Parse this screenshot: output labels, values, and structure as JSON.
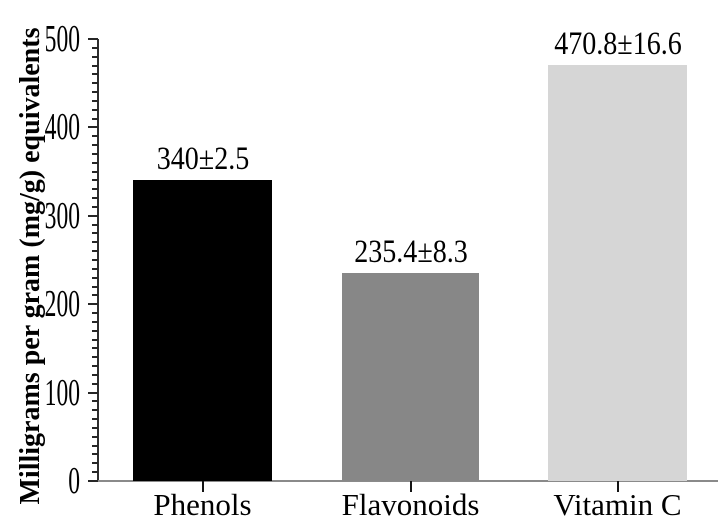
{
  "chart_data": {
    "type": "bar",
    "title": "",
    "xlabel": "",
    "ylabel": "Milligrams per gram (mg/g) equivalents",
    "categories": [
      "Phenols",
      "Flavonoids",
      "Vitamin C"
    ],
    "values": [
      340,
      235.4,
      470.8
    ],
    "errors": [
      2.5,
      8.3,
      16.6
    ],
    "bar_value_labels": [
      "340±2.5",
      "235.4±8.3",
      "470.8±16.6"
    ],
    "bar_colors": [
      "#000000",
      "#878787",
      "#d6d6d6"
    ],
    "ylim": [
      0,
      500
    ],
    "yticks": [
      0,
      100,
      200,
      300,
      400,
      500
    ],
    "minor_tick_interval": 10,
    "grid": false,
    "legend": false,
    "background_color": "#ffffff",
    "layout_hints": {
      "bars_filled_solid": true,
      "value_labels_above_bars": true,
      "y_axis_minor_ticks": true
    }
  }
}
